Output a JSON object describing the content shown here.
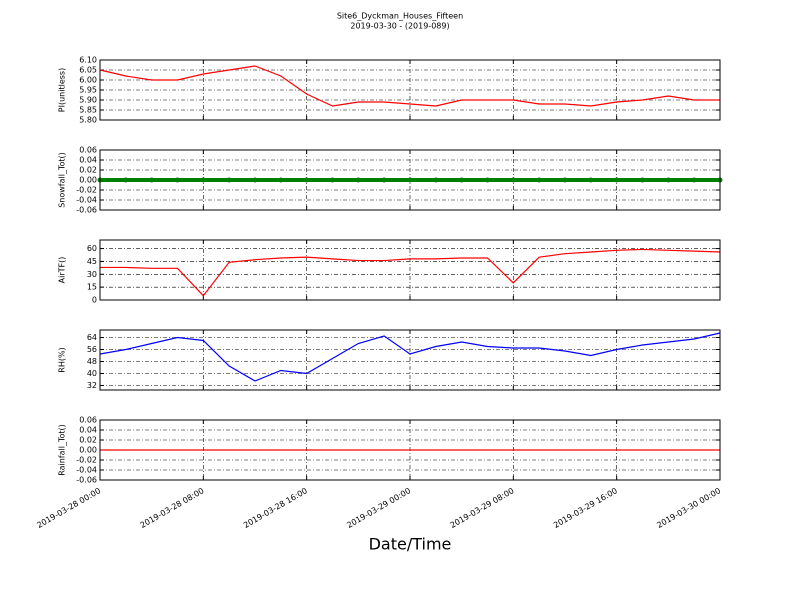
{
  "chart_data": {
    "type": "line",
    "title": "Site6_Dyckman_Houses_Fifteen",
    "subtitle": "2019-03-30 - (2019-089)",
    "xlabel": "Date/Time",
    "grid": true,
    "x": [
      "2019-03-28 00:00",
      "2019-03-28 02:00",
      "2019-03-28 04:00",
      "2019-03-28 06:00",
      "2019-03-28 08:00",
      "2019-03-28 10:00",
      "2019-03-28 12:00",
      "2019-03-28 14:00",
      "2019-03-28 16:00",
      "2019-03-28 18:00",
      "2019-03-28 20:00",
      "2019-03-28 22:00",
      "2019-03-29 00:00",
      "2019-03-29 02:00",
      "2019-03-29 04:00",
      "2019-03-29 06:00",
      "2019-03-29 08:00",
      "2019-03-29 10:00",
      "2019-03-29 12:00",
      "2019-03-29 14:00",
      "2019-03-29 16:00",
      "2019-03-29 18:00",
      "2019-03-29 20:00",
      "2019-03-29 22:00",
      "2019-03-30 00:00"
    ],
    "xlim": [
      "2019-03-28 00:00",
      "2019-03-30 00:00"
    ],
    "xticks": [
      "2019-03-28 00:00",
      "2019-03-28 08:00",
      "2019-03-28 16:00",
      "2019-03-29 00:00",
      "2019-03-29 08:00",
      "2019-03-29 16:00",
      "2019-03-30 00:00"
    ],
    "panels": [
      {
        "ylabel": "PI(unitless)",
        "ylim": [
          5.8,
          6.1
        ],
        "yticks": [
          {
            "value": 5.8,
            "label": "5.80"
          },
          {
            "value": 5.85,
            "label": "5.85"
          },
          {
            "value": 5.9,
            "label": "5.90"
          },
          {
            "value": 5.95,
            "label": "5.95"
          },
          {
            "value": 6.0,
            "label": "6.00"
          },
          {
            "value": 6.05,
            "label": "6.05"
          },
          {
            "value": 6.1,
            "label": "6.10"
          }
        ],
        "series": [
          {
            "color": "#ff0000",
            "values": [
              6.05,
              6.02,
              6.0,
              6.0,
              6.03,
              6.05,
              6.07,
              6.02,
              5.93,
              5.87,
              5.89,
              5.89,
              5.88,
              5.87,
              5.9,
              5.9,
              5.9,
              5.88,
              5.88,
              5.87,
              5.89,
              5.9,
              5.92,
              5.9,
              5.9
            ]
          }
        ]
      },
      {
        "ylabel": "Snowfall_Tot()",
        "ylim": [
          -0.06,
          0.06
        ],
        "yticks": [
          -0.06,
          -0.04,
          -0.02,
          {
            "value": 0,
            "label": "0.00"
          },
          0.02,
          0.04,
          0.06
        ],
        "series": [
          {
            "color": "#008000",
            "marker": "o",
            "values": [
              0,
              0,
              0,
              0,
              0,
              0,
              0,
              0,
              0,
              0,
              0,
              0,
              0,
              0,
              0,
              0,
              0,
              0,
              0,
              0,
              0,
              0,
              0,
              0,
              0
            ]
          }
        ]
      },
      {
        "ylabel": "AirTF()",
        "ylim": [
          0,
          70
        ],
        "yticks": [
          0,
          15,
          30,
          45,
          60
        ],
        "series": [
          {
            "color": "#ff0000",
            "values": [
              38,
              38,
              37,
              37,
              5,
              44,
              47,
              49,
              50,
              48,
              46,
              46,
              48,
              48,
              49,
              49,
              20,
              50,
              54,
              56,
              58,
              59,
              58,
              57,
              56
            ]
          }
        ]
      },
      {
        "ylabel": "RH(%)",
        "ylim": [
          29,
          69
        ],
        "yticks": [
          32,
          40,
          48,
          56,
          64
        ],
        "series": [
          {
            "color": "#0000ff",
            "values": [
              53,
              56,
              60,
              64,
              62,
              45,
              35,
              42,
              40,
              50,
              60,
              65,
              53,
              58,
              61,
              58,
              57,
              57,
              55,
              52,
              56,
              59,
              61,
              63,
              67
            ]
          }
        ]
      },
      {
        "ylabel": "Rainfall_Tot()",
        "ylim": [
          -0.06,
          0.06
        ],
        "yticks": [
          -0.06,
          -0.04,
          -0.02,
          {
            "value": 0,
            "label": "0.00"
          },
          0.02,
          0.04,
          0.06
        ],
        "series": [
          {
            "color": "#ff0000",
            "values": [
              0,
              0,
              0,
              0,
              0,
              0,
              0,
              0,
              0,
              0,
              0,
              0,
              0,
              0,
              0,
              0,
              0,
              0,
              0,
              0,
              0,
              0,
              0,
              0,
              0
            ]
          }
        ]
      }
    ]
  }
}
